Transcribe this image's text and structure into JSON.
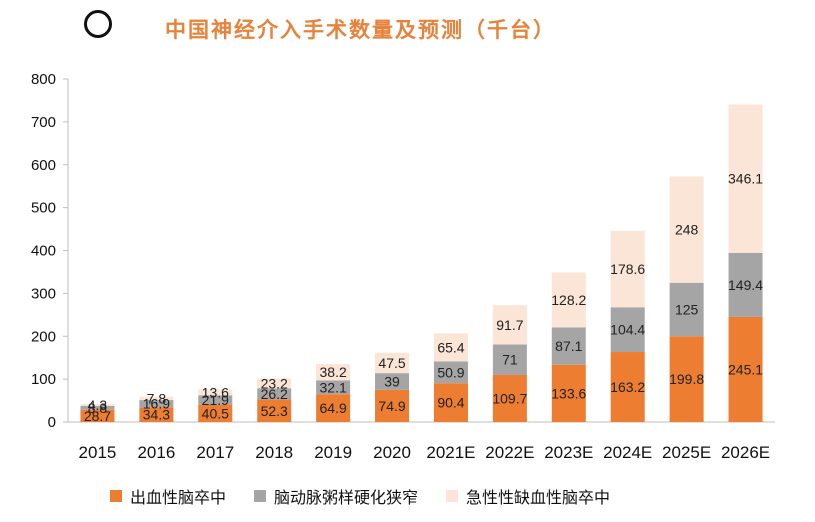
{
  "chart_data": {
    "type": "bar",
    "stacked": true,
    "title": "中国神经介入手术数量及预测（千台）",
    "categories": [
      "2015",
      "2016",
      "2017",
      "2018",
      "2019",
      "2020",
      "2021E",
      "2022E",
      "2023E",
      "2024E",
      "2025E",
      "2026E"
    ],
    "series": [
      {
        "name": "出血性脑卒中",
        "color": "#ED7D31",
        "values": [
          28.7,
          34.3,
          40.5,
          52.3,
          64.9,
          74.9,
          90.4,
          109.7,
          133.6,
          163.2,
          199.8,
          245.1
        ]
      },
      {
        "name": "脑动脉粥样硬化狭窄",
        "color": "#A5A5A5",
        "values": [
          8.8,
          16.9,
          21.9,
          26.2,
          32.1,
          39,
          50.9,
          71,
          87.1,
          104.4,
          125,
          149.4
        ]
      },
      {
        "name": "急性性缺血性脑卒中",
        "color": "#FBE5D6",
        "values": [
          4.3,
          7.8,
          13.6,
          23.2,
          38.2,
          47.5,
          65.4,
          91.7,
          128.2,
          178.6,
          248,
          346.1
        ]
      }
    ],
    "yticks": [
      "0",
      "100",
      "200",
      "300",
      "400",
      "500",
      "600",
      "700",
      "800"
    ],
    "ylim": [
      0,
      800
    ],
    "grid": false,
    "legend_position": "bottom"
  }
}
